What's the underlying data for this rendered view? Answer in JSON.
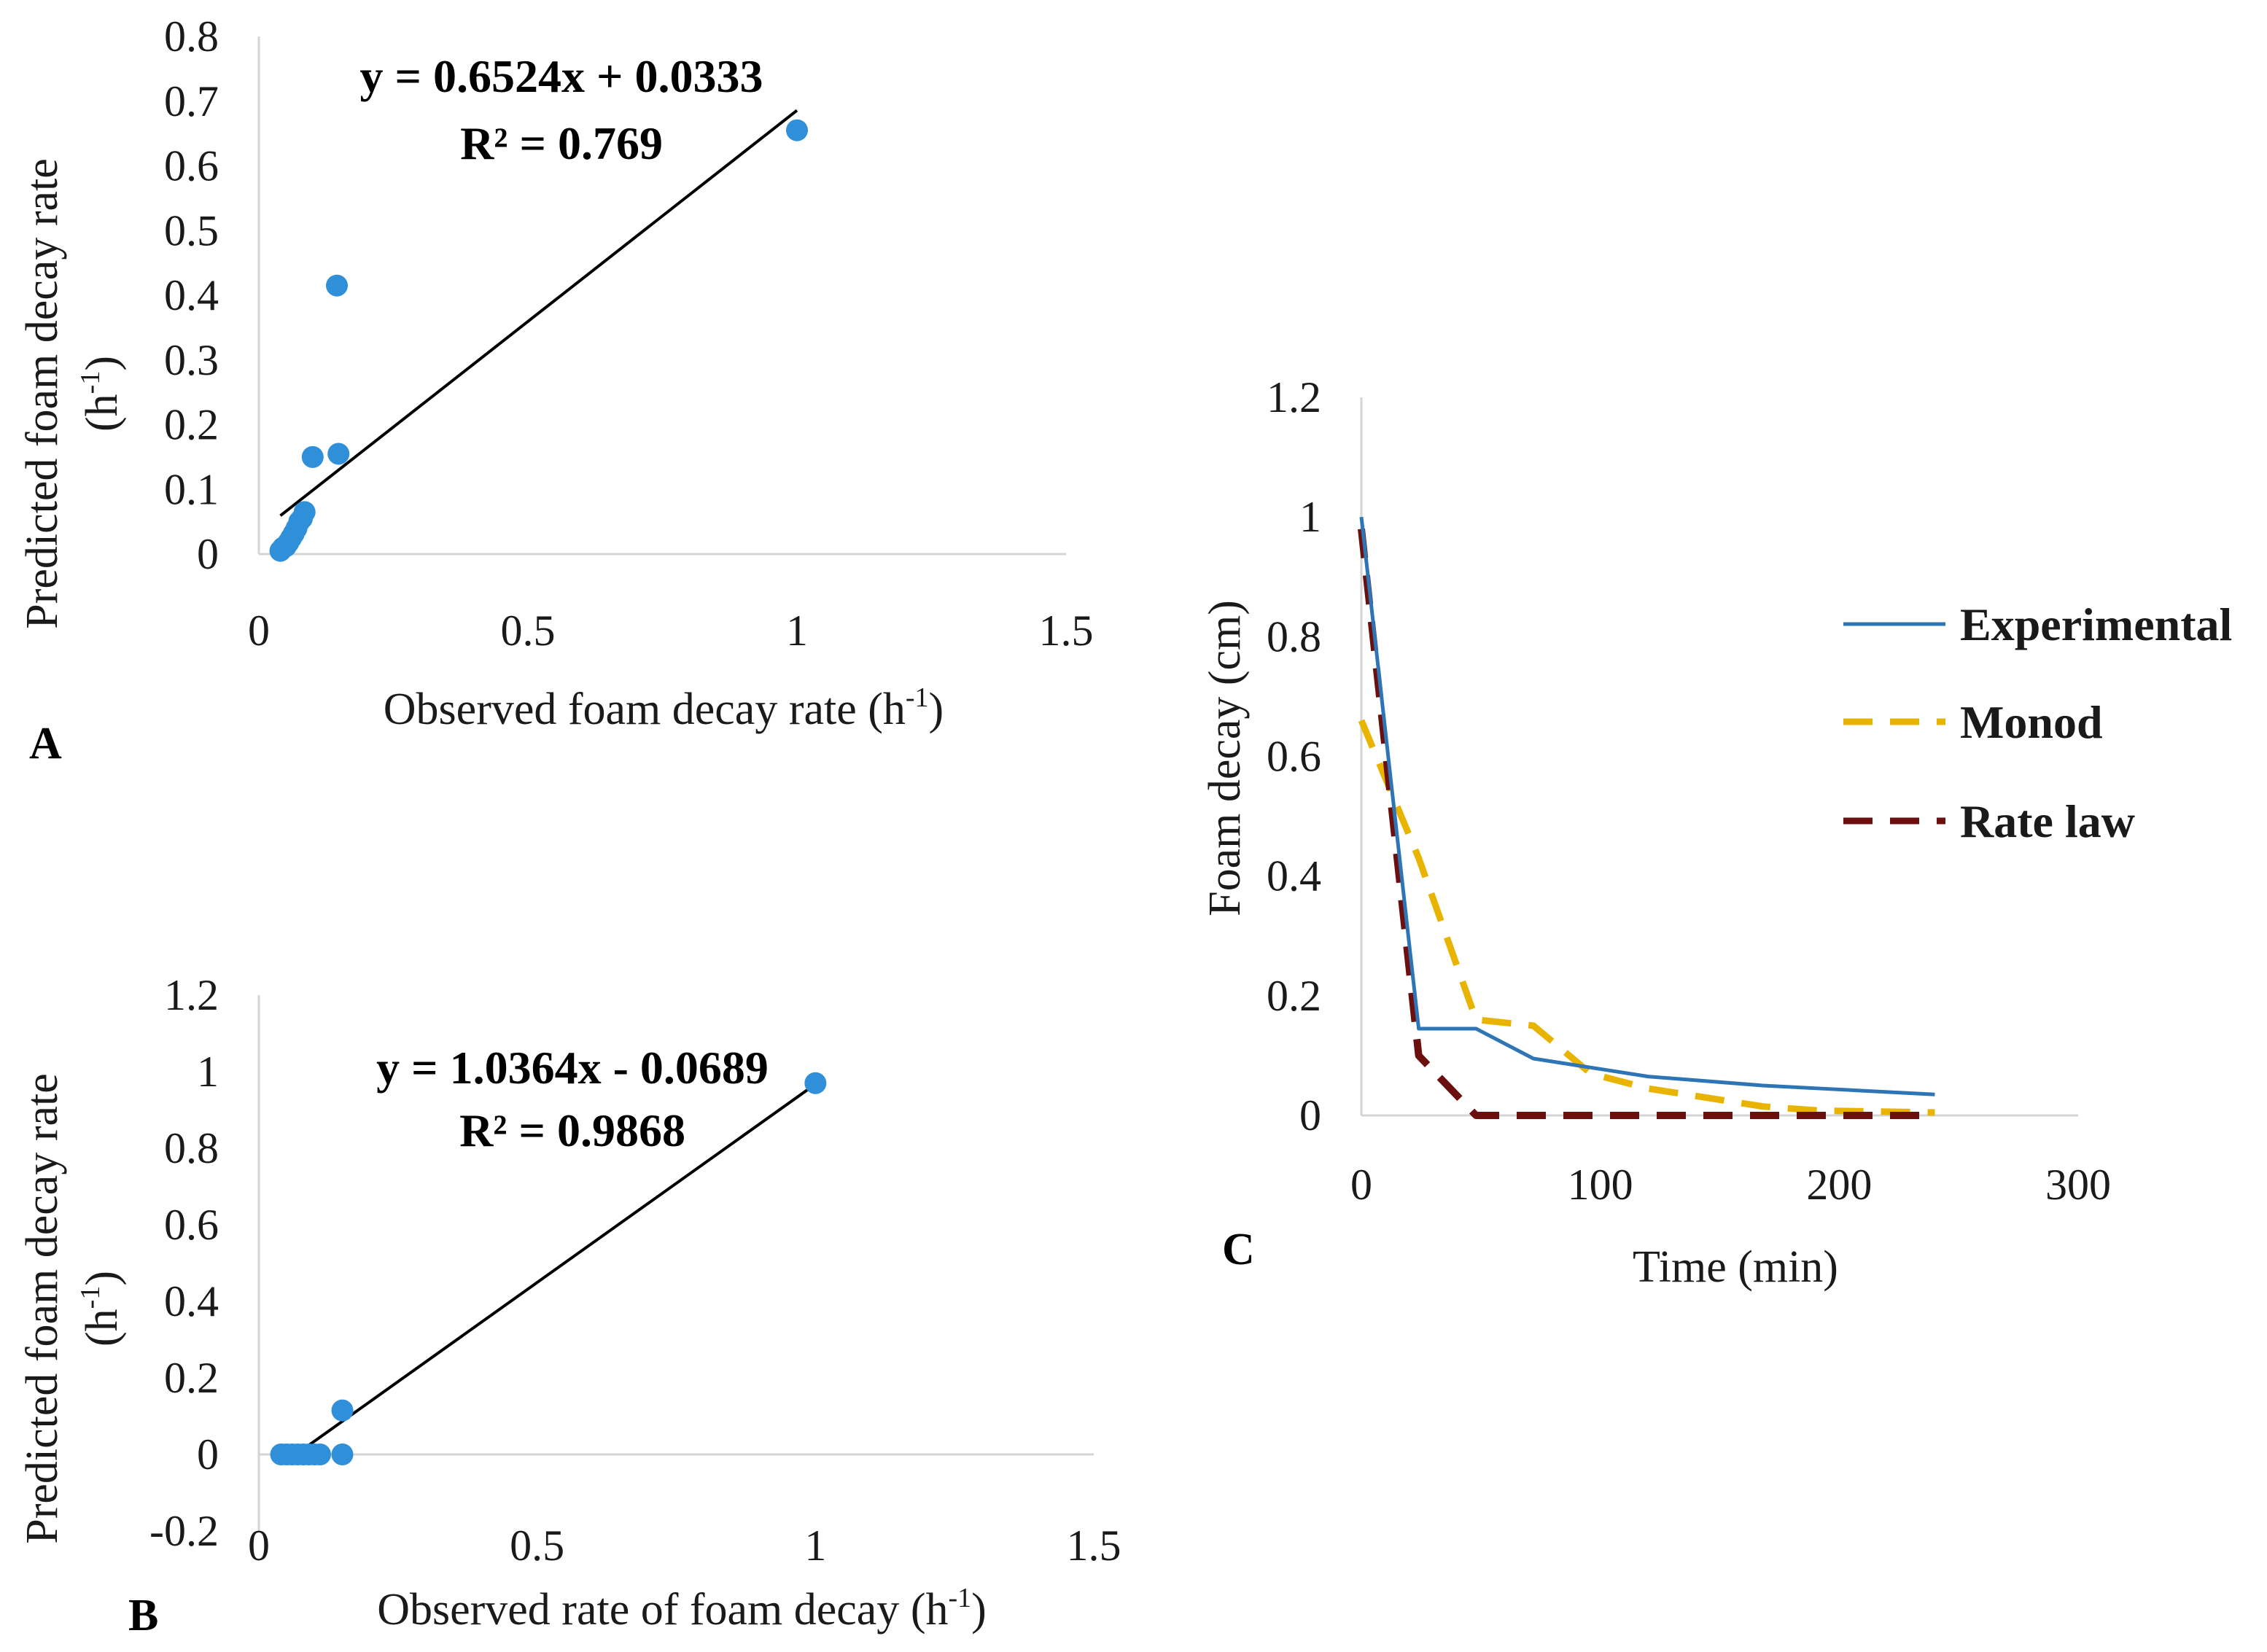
{
  "colors": {
    "point": "#2f8fd8",
    "experimental": "#2e75b6",
    "monod": "#e8b400",
    "rate_law": "#6b0f0f",
    "trendline": "#000000"
  },
  "chart_data": [
    {
      "id": "A",
      "type": "scatter",
      "panel_label": "A",
      "xlabel": "Observed foam decay rate",
      "xlabel_unit": "(h",
      "xlabel_sup": "-1",
      "xlabel_close": ")",
      "ylabel": "Predicted foam decay rate",
      "ylabel_unit": "(h",
      "ylabel_sup": "-1",
      "ylabel_close": ")",
      "xlim": [
        0,
        1.5
      ],
      "ylim": [
        0,
        0.8
      ],
      "xticks": [
        0,
        0.5,
        1,
        1.5
      ],
      "xtick_labels": [
        "0",
        "0.5",
        "1",
        "1.5"
      ],
      "yticks": [
        0,
        0.1,
        0.2,
        0.3,
        0.4,
        0.5,
        0.6,
        0.7,
        0.8
      ],
      "ytick_labels": [
        "0",
        "0.1",
        "0.2",
        "0.3",
        "0.4",
        "0.5",
        "0.6",
        "0.7",
        "0.8"
      ],
      "points": [
        {
          "x": 0.04,
          "y": 0.005
        },
        {
          "x": 0.045,
          "y": 0.01
        },
        {
          "x": 0.05,
          "y": 0.012
        },
        {
          "x": 0.055,
          "y": 0.018
        },
        {
          "x": 0.06,
          "y": 0.025
        },
        {
          "x": 0.065,
          "y": 0.032
        },
        {
          "x": 0.07,
          "y": 0.04
        },
        {
          "x": 0.075,
          "y": 0.05
        },
        {
          "x": 0.08,
          "y": 0.055
        },
        {
          "x": 0.085,
          "y": 0.065
        },
        {
          "x": 0.1,
          "y": 0.15
        },
        {
          "x": 0.148,
          "y": 0.155
        },
        {
          "x": 0.145,
          "y": 0.415
        },
        {
          "x": 1.0,
          "y": 0.655
        }
      ],
      "trendline": {
        "slope": 0.6524,
        "intercept": 0.0333,
        "x_start": 0.04,
        "x_end": 1.0
      },
      "equation": "y = 0.6524x + 0.0333",
      "r_squared": "R² = 0.769"
    },
    {
      "id": "B",
      "type": "scatter",
      "panel_label": "B",
      "xlabel": "Observed rate of foam decay",
      "xlabel_unit": "(h",
      "xlabel_sup": "-1",
      "xlabel_close": ")",
      "ylabel": "Predicted foam decay rate",
      "ylabel_unit": "(h",
      "ylabel_sup": "-1",
      "ylabel_close": ")",
      "xlim": [
        0,
        1.5
      ],
      "ylim": [
        -0.2,
        1.2
      ],
      "xticks": [
        0,
        0.5,
        1,
        1.5
      ],
      "xtick_labels": [
        "0",
        "0.5",
        "1",
        "1.5"
      ],
      "yticks": [
        -0.2,
        0,
        0.2,
        0.4,
        0.6,
        0.8,
        1,
        1.2
      ],
      "ytick_labels": [
        "-0.2",
        "0",
        "0.2",
        "0.4",
        "0.6",
        "0.8",
        "1",
        "1.2"
      ],
      "points": [
        {
          "x": 0.04,
          "y": 0.0
        },
        {
          "x": 0.05,
          "y": 0.0
        },
        {
          "x": 0.06,
          "y": 0.0
        },
        {
          "x": 0.07,
          "y": 0.0
        },
        {
          "x": 0.08,
          "y": 0.0
        },
        {
          "x": 0.09,
          "y": 0.0
        },
        {
          "x": 0.1,
          "y": 0.0
        },
        {
          "x": 0.11,
          "y": 0.0
        },
        {
          "x": 0.15,
          "y": 0.0
        },
        {
          "x": 0.15,
          "y": 0.115
        },
        {
          "x": 1.0,
          "y": 0.97
        }
      ],
      "trendline": {
        "slope": 1.0364,
        "intercept": -0.0689,
        "x_start": 0.066,
        "x_end": 1.0
      },
      "equation": "y = 1.0364x - 0.0689",
      "r_squared": "R² = 0.9868"
    },
    {
      "id": "C",
      "type": "line",
      "panel_label": "C",
      "xlabel": "Time (min)",
      "ylabel": "Foam decay (cm)",
      "xlim": [
        0,
        300
      ],
      "ylim": [
        0,
        1.2
      ],
      "xticks": [
        0,
        100,
        200,
        300
      ],
      "xtick_labels": [
        "0",
        "100",
        "200",
        "300"
      ],
      "yticks": [
        0,
        0.2,
        0.4,
        0.6,
        0.8,
        1,
        1.2
      ],
      "ytick_labels": [
        "0",
        "0.2",
        "0.4",
        "0.6",
        "0.8",
        "1",
        "1.2"
      ],
      "legend_position": "right",
      "series": [
        {
          "name": "Experimental",
          "style": "solid",
          "x": [
            0,
            24,
            48,
            72,
            96,
            120,
            168,
            192,
            240
          ],
          "y": [
            1.0,
            0.145,
            0.145,
            0.095,
            0.08,
            0.065,
            0.05,
            0.045,
            0.035
          ]
        },
        {
          "name": "Monod",
          "style": "dashed",
          "x": [
            0,
            24,
            48,
            72,
            96,
            120,
            168,
            192,
            240
          ],
          "y": [
            0.66,
            0.43,
            0.16,
            0.15,
            0.07,
            0.045,
            0.015,
            0.008,
            0.005
          ]
        },
        {
          "name": "Rate law",
          "style": "dashed",
          "x": [
            0,
            24,
            48,
            72,
            96,
            120,
            168,
            192,
            240
          ],
          "y": [
            0.98,
            0.1,
            0.0,
            0.0,
            0.0,
            0.0,
            0.0,
            0.0,
            0.0
          ]
        }
      ]
    }
  ]
}
